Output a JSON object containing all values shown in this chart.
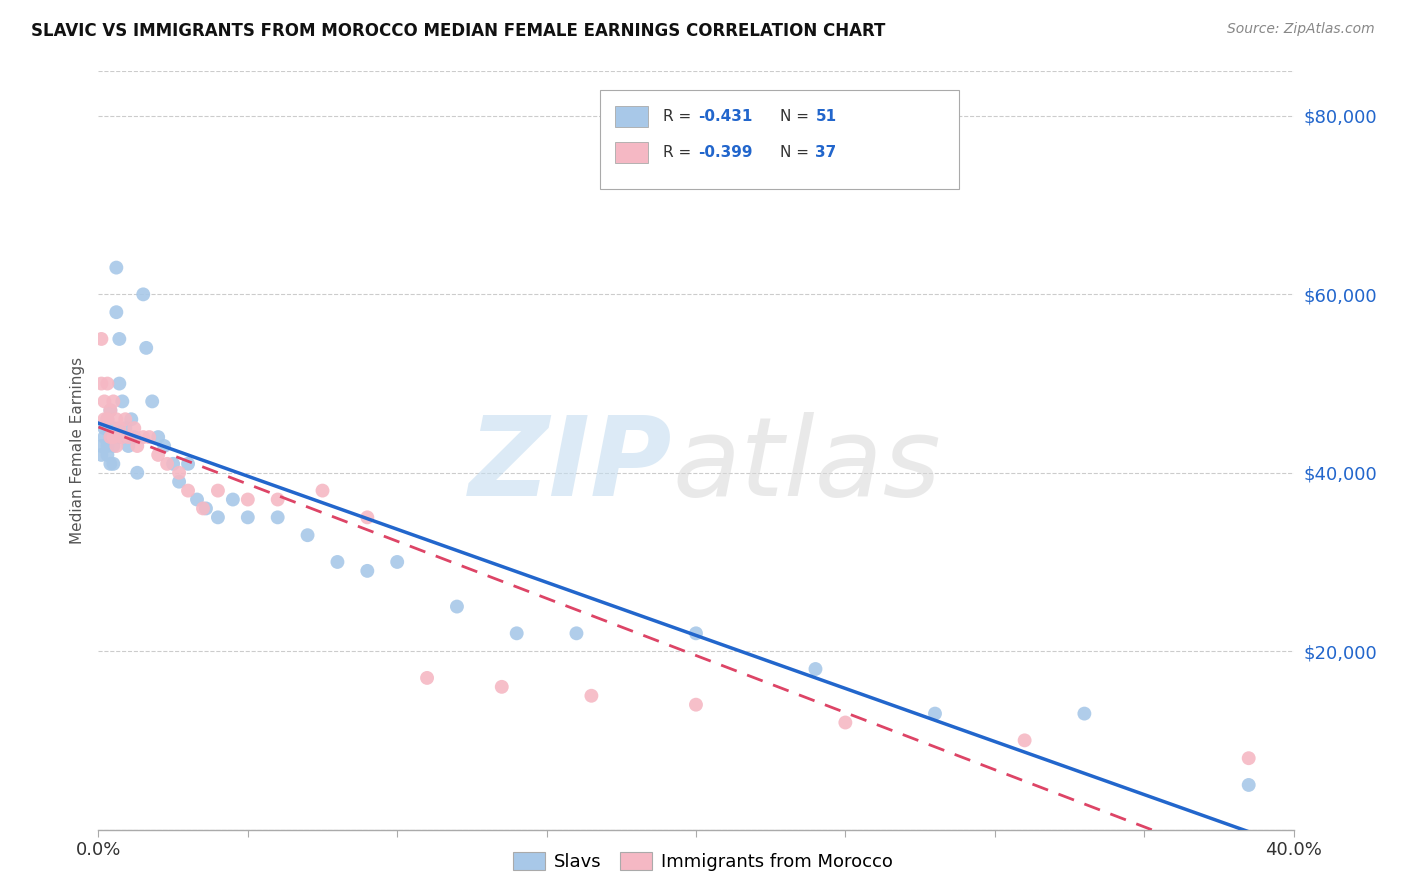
{
  "title": "SLAVIC VS IMMIGRANTS FROM MOROCCO MEDIAN FEMALE EARNINGS CORRELATION CHART",
  "source": "Source: ZipAtlas.com",
  "ylabel": "Median Female Earnings",
  "legend_slavs": "Slavs",
  "legend_morocco": "Immigrants from Morocco",
  "slavs_R": "-0.431",
  "slavs_N": "51",
  "morocco_R": "-0.399",
  "morocco_N": "37",
  "slavs_color": "#a8c8e8",
  "morocco_color": "#f5b8c4",
  "slavs_line_color": "#2266cc",
  "morocco_line_color": "#dd4466",
  "background_color": "#ffffff",
  "xmin": 0.0,
  "xmax": 0.4,
  "ymin": 0,
  "ymax": 85000,
  "right_yticks": [
    0,
    20000,
    40000,
    60000,
    80000
  ],
  "right_yticklabels": [
    "",
    "$20,000",
    "$40,000",
    "$60,000",
    "$80,000"
  ],
  "slavs_x": [
    0.001,
    0.001,
    0.002,
    0.002,
    0.003,
    0.003,
    0.003,
    0.004,
    0.004,
    0.004,
    0.005,
    0.005,
    0.005,
    0.006,
    0.006,
    0.007,
    0.007,
    0.007,
    0.008,
    0.009,
    0.01,
    0.01,
    0.011,
    0.012,
    0.013,
    0.015,
    0.016,
    0.018,
    0.02,
    0.022,
    0.025,
    0.027,
    0.03,
    0.033,
    0.036,
    0.04,
    0.045,
    0.05,
    0.06,
    0.07,
    0.08,
    0.09,
    0.1,
    0.12,
    0.14,
    0.16,
    0.2,
    0.24,
    0.28,
    0.33,
    0.385
  ],
  "slavs_y": [
    43000,
    42000,
    45000,
    44000,
    46000,
    43000,
    42000,
    47000,
    44000,
    41000,
    45000,
    43000,
    41000,
    63000,
    58000,
    55000,
    50000,
    44000,
    48000,
    45000,
    44000,
    43000,
    46000,
    44000,
    40000,
    60000,
    54000,
    48000,
    44000,
    43000,
    41000,
    39000,
    41000,
    37000,
    36000,
    35000,
    37000,
    35000,
    35000,
    33000,
    30000,
    29000,
    30000,
    25000,
    22000,
    22000,
    22000,
    18000,
    13000,
    13000,
    5000
  ],
  "morocco_x": [
    0.001,
    0.001,
    0.002,
    0.002,
    0.003,
    0.003,
    0.004,
    0.004,
    0.005,
    0.005,
    0.006,
    0.006,
    0.007,
    0.008,
    0.009,
    0.01,
    0.012,
    0.013,
    0.015,
    0.017,
    0.02,
    0.023,
    0.027,
    0.03,
    0.035,
    0.04,
    0.05,
    0.06,
    0.075,
    0.09,
    0.11,
    0.135,
    0.165,
    0.2,
    0.25,
    0.31,
    0.385
  ],
  "morocco_y": [
    55000,
    50000,
    48000,
    46000,
    50000,
    46000,
    47000,
    44000,
    48000,
    44000,
    46000,
    43000,
    45000,
    44000,
    46000,
    44000,
    45000,
    43000,
    44000,
    44000,
    42000,
    41000,
    40000,
    38000,
    36000,
    38000,
    37000,
    37000,
    38000,
    35000,
    17000,
    16000,
    15000,
    14000,
    12000,
    10000,
    8000
  ]
}
